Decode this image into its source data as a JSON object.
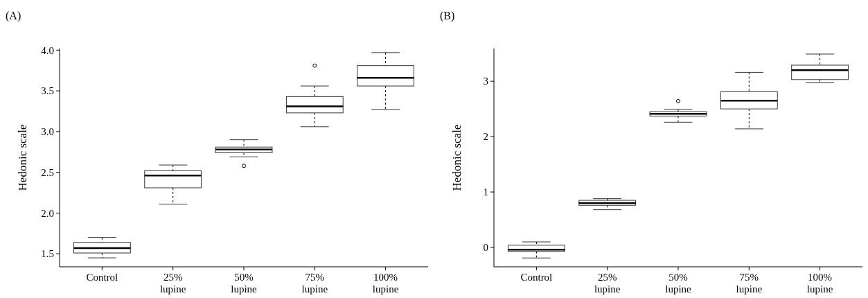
{
  "chart_data": [
    {
      "type": "box",
      "title": "(A)",
      "ylabel": "Hedonic scale",
      "categories": [
        "Control",
        "25%\nlupine",
        "50%\nlupine",
        "75%\nlupine",
        "100%\nlupine"
      ],
      "ylim": [
        1.34,
        4.02
      ],
      "yticks": [
        {
          "value": 1.5,
          "label": "1.5"
        },
        {
          "value": 2,
          "label": "2.0"
        },
        {
          "value": 2.5,
          "label": "2.5"
        },
        {
          "value": 3,
          "label": "3.0"
        },
        {
          "value": 3.5,
          "label": "3.5"
        },
        {
          "value": 4,
          "label": "4.0"
        }
      ],
      "grid": false,
      "boxes": [
        {
          "low": 1.45,
          "q1": 1.51,
          "median": 1.57,
          "q3": 1.64,
          "high": 1.7
        },
        {
          "low": 2.11,
          "q1": 2.31,
          "median": 2.46,
          "q3": 2.52,
          "high": 2.59
        },
        {
          "low": 2.69,
          "q1": 2.74,
          "median": 2.78,
          "q3": 2.81,
          "high": 2.9,
          "outliers": [
            2.58
          ]
        },
        {
          "low": 3.06,
          "q1": 3.23,
          "median": 3.31,
          "q3": 3.43,
          "high": 3.56,
          "outliers": [
            3.81
          ]
        },
        {
          "low": 3.27,
          "q1": 3.56,
          "median": 3.66,
          "q3": 3.81,
          "high": 3.97
        }
      ]
    },
    {
      "type": "box",
      "title": "(B)",
      "ylabel": "Hedonic scale",
      "categories": [
        "Control",
        "25%\nlupine",
        "50%\nlupine",
        "75%\nlupine",
        "100%\nlupine"
      ],
      "ylim": [
        -0.35,
        3.59
      ],
      "yticks": [
        0,
        1,
        2,
        3
      ],
      "grid": false,
      "boxes": [
        {
          "low": -0.19,
          "q1": -0.07,
          "median": -0.04,
          "q3": 0.04,
          "high": 0.1
        },
        {
          "low": 0.68,
          "q1": 0.76,
          "median": 0.8,
          "q3": 0.85,
          "high": 0.88
        },
        {
          "low": 2.26,
          "q1": 2.37,
          "median": 2.41,
          "q3": 2.45,
          "high": 2.49,
          "outliers": [
            2.64
          ]
        },
        {
          "low": 2.14,
          "q1": 2.5,
          "median": 2.65,
          "q3": 2.81,
          "high": 3.16
        },
        {
          "low": 2.97,
          "q1": 3.03,
          "median": 3.2,
          "q3": 3.29,
          "high": 3.49
        }
      ]
    }
  ]
}
